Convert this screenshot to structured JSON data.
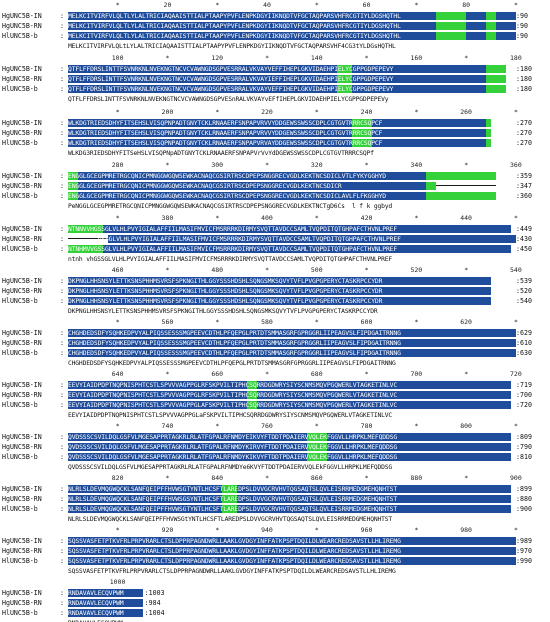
{
  "sequence_names": [
    "HgUNC5B-IN",
    "HgUNC5B-RN",
    "HlUNC5B-b"
  ],
  "blocks": [
    {
      "ruler": [
        "*",
        "20",
        "*",
        "40",
        "*",
        "60",
        "*",
        "80",
        "*"
      ],
      "rows": [
        {
          "seq": "MELKCITVIRFVLQLTLYLALTRICIAQAAISTTIALPTAAPYPVFLENPKDGYIIKNQDTVFGCTAQPARSVHFRCGTIYLDGSHQTHL",
          "count": "90"
        },
        {
          "seq": "MELKCITVIRFVLQLTLYLALTRICIAQAAISTTIALPTAAPYPVFLENPKDGYIIKNQDTVFGCTAQPARSVHFRCGTIYLDGSHQTHL",
          "count": "90"
        },
        {
          "seq": "MELKCITVIRFVLQLTLYLALTRICIAQAAISTTIALPTAAPYPVFLENPKDGYIIKNQDTVFGCTAQPARSVHFRCGTIYLDGSHQTHL",
          "count": "90"
        }
      ],
      "consensus": "MELKCITVIRFVLQLtLYLALTRICIAQAAISTTIALPTAAPYPVFLENPKDGYIIKNQDTVFGCTAQPARSVHF4CG3tYLDGsHQTHL"
    },
    {
      "ruler": [
        "100",
        "*",
        "120",
        "*",
        "140",
        "*",
        "160",
        "*",
        "180"
      ],
      "rows": [
        {
          "seq": "QTFLFFDRSLINTTFSVNRKNLNVEKNGTNCVCVAWNGDSGPVESRRALVKVAYVEFFIHEPLGKVIDAEHPIELYCGPPGDPEPEVY",
          "count": "180"
        },
        {
          "seq": "QTFLFFDRSLINTTFSVNRKNLNVEKNGTNCVCVAWNGDSGPVESRRALVKVAYIEFFIHEPLGKVIDAEHPIELYCGPPGDPEPEVY",
          "count": "180"
        },
        {
          "seq": "QTFLFFDRSLINTTFSVNRKNLNVEKNGTNCVCVAWNGDSGPVESRRALVKVAYVEFFIHEPLGKVIDAEHPIELYCGPPGDPEPEVY",
          "count": "180"
        }
      ],
      "consensus": "QTFLFFDRSLINTTFSVNRKNLNVEKNGTNCVCVAWNGDSGPVESnRALVKVAYvEFfIHEPLGKVIDAEHPIELYCGPPGDPEPEVy"
    },
    {
      "ruler": [
        "*",
        "200",
        "*",
        "220",
        "*",
        "240",
        "*",
        "260",
        "*"
      ],
      "rows": [
        {
          "seq": "WLKDGTRIEDSDHYFITSEHSLVISQPNPADTGNYTCKLRNAAERFSNPAPVRVVYDDGEWSSWSSCDPLCGTGVTRRRCSQPCF",
          "count": "270"
        },
        {
          "seq": "WLKDGTRIEDSDHYFITSEHSLVISQPNPADTGNYTCKLRNAAERFSNPAPVRVVYDDGEWSSWSSCDPLCGTGVTRRRCSQPCF",
          "count": "270"
        },
        {
          "seq": "WLKDGTRIEDSDHYFITSEHSLVISQPNPADTGNYTCKLRNAAERFSNPAPVRVAYDDGEWSSWSSCDPLCGTGVTRRRCSQPCF",
          "count": "270"
        }
      ],
      "consensus": "WLKDG3RIEDSDHYFITSeHSLVISQPNpADTGNYTCKLRNAAERFSNPAPVrVvYdDGEWSSWSSCDPLCGTGVTRRRCSQPf"
    },
    {
      "ruler": [
        "280",
        "*",
        "300",
        "*",
        "320",
        "*",
        "340",
        "*",
        "360"
      ],
      "rows": [
        {
          "seq": "ENGGLGCEGPMRETRGCQNICPMNGGWGQWSEWKACNAQCGSIRTRSCDPEPSNGGRECVGDLKEKTNCSDICLVTLFYKYGGHYD",
          "count": "359"
        },
        {
          "seq": "ENGGLGCEGPMRETRGCQNICPMNGGWGQWSEWKACNAQCGSIRTRSCDPEPSNGGRECVGDLKEKTNCSDICR",
          "count": "347"
        },
        {
          "seq": "ENGGLGCEGPMRETRGCQNICPMNGGWGQWSEWKACNAQCGSIRTRSCDPEPSNGGRECVGDLKEKTNCSDICLAVLFLFKGGHYD",
          "count": "360"
        }
      ],
      "consensus": "PeNGGLGCEGPMRETRGCQNICPMNGGWGQWSEWKACNAQCGSIRTRSCDPEPSNGGRECVGDLKEKTNCTgD6Cs  l f k ggbyd"
    },
    {
      "ruler": [
        "*",
        "380",
        "*",
        "400",
        "*",
        "420",
        "*",
        "440",
        "*"
      ],
      "rows": [
        {
          "seq": "NTNNVVHGSSGLVLHLPVYIGIALAFFIILMASIFMVICFMSRRRKDIRMYSVQTTAVDCCSAMLTVQPDITQTGHPAFCTHVNLPREF",
          "count": "449"
        },
        {
          "seq": "        GSSGLVLHLPVYIGIALAFFIILMASIFMVICFMSRRRKDIRMYSVQTTAVDCCSAMLTVQPDITQTGHPAFCTHVNLPREF",
          "count": "430"
        },
        {
          "seq": "NTNHMVVGSSGLVLHLPVYIGIALAFFIILMASIFMVICFMSRRRKDIRMYSVQTTAVDCCSAMLTVQPDITQTGHPAFCTHVNLPREF",
          "count": "450"
        }
      ],
      "consensus": "ntnh vhGSSGLVLHLPVYIGIALAFFIILMASIFMVICFMSRRRKDIRMYSVQTTAVDCCSAMLTVQPDITQTGHPAFCTHVNLPREF"
    },
    {
      "ruler": [
        "460",
        "*",
        "480",
        "*",
        "500",
        "*",
        "520",
        "*",
        "540"
      ],
      "rows": [
        {
          "seq": "DKPNGLHHSNSYLETTKSNSPHHMSVRSFSPKNGITHLGGYSSSHDSHLSQNGSMKSQVYTVFLPVGPGPERYCTASKRPCCYDR",
          "count": "539"
        },
        {
          "seq": "DKPNGLHHSNSYLETTKSNSPHHMSVRSFSPKNGITHLGGYSSSHDSHLSQNGSMKSQVYTVFLPVGPGPERYCTASKRPCCYDR",
          "count": "520"
        },
        {
          "seq": "DKPNGLHHSNSYLETTKSNSPHHMSVRSFSPKNGITHLGGYSSSHDSHLSQNGSMKSQVYTVFLPVGPGPERYCTASKRPCCYDR",
          "count": "540"
        }
      ],
      "consensus": "DKPNGLHHSNSYLETTKSNSPHHMSVRSFSPKNGITHLGGYSSSHDSHLSQNGSMKSQVYTVFLPVGPGPERYCTASKRPCCYDR"
    },
    {
      "ruler": [
        "*",
        "560",
        "*",
        "580",
        "*",
        "600",
        "*",
        "620",
        "*"
      ],
      "rows": [
        {
          "seq": "CHGHDEDSDFYSQHKEDPVYALPIQSSESSSMGPEEVCDTHLPFQEPGLPRTDTSMMASGRFGPRGGRLIIPEAGVSLFIPDGAITRNNG",
          "count": "629"
        },
        {
          "seq": "CHGHDEDSDFYSQHKEDPVYALPIQSSESSSMGPEEVCDTHLPFQEPGLPRTDTSMMASGRFGPRGGRLIIPEAGVSLFIPDGAITRNNG",
          "count": "610"
        },
        {
          "seq": "CHGHDEDSDFYSQHKEDPVYALPIQSSESSSMGPEEVCDTHLPFQEPGLPRTDTSMMASGRFGPRGGRLIIPEAGVSLFIPDGAITRNNG",
          "count": "630"
        }
      ],
      "consensus": "CHGHDEDSDFYSQHKEDPVYALPIQSSESSSMGPEEVCDTHLPFQEPGLPRTDTSMMASGRFGPRGGRLIIPEAGVSLFIPDGAITRNNG"
    },
    {
      "ruler": [
        "640",
        "*",
        "660",
        "*",
        "680",
        "*",
        "700",
        "*",
        "720"
      ],
      "rows": [
        {
          "seq": "EEVYIAIDPDPTNQPNISPHTCSTLSPVVVAGPPGLRFSKPVILTIPHCSQRRDGDWRYSIYSCNMSMQVPGQWERLVTAGKETINLVC",
          "count": "719"
        },
        {
          "seq": "EEVYIAIDPDPTNQPNISPHTCSTLSPVVVAGPPGLRFSKPVILTIPHCSQRRDGDWRYSIYSCNMSMQVPGQWERLVTAGKETINLVC",
          "count": "700"
        },
        {
          "seq": "EEVYIAIDPDPTNQPNISPHTCSTLSPVVVAGPPGLAFSKPVILTIPHCSQRRDGDWRYSIYSCNMSMQVPGQWERLVTAGKETINLVC",
          "count": "720"
        }
      ],
      "consensus": "EEVYIAIDPDPTNQPNISPHTCSTLSPVVVAGPPGLaFSKPVILTIPHCSQRRDGDWRYSIYSCNMSMQVPGQWERLVTAGKETINLVC"
    },
    {
      "ruler": [
        "*",
        "740",
        "*",
        "760",
        "*",
        "780",
        "*",
        "800",
        "*"
      ],
      "rows": [
        {
          "seq": "QVDSSSCSVILDQLGSFVLMGESAPPRTAGKRLRLATFGPALRFNMDYEIKVYFTDDTPDAIERVVQLEKFGGVLLHRPKLMEFQDDSG",
          "count": "809"
        },
        {
          "seq": "QVDSSSCSVILDQLGSFVLMGESAPPRTAGKRLRLATFGPALRFNMDYKIRVYFTDDTPDAIERVVQLEKFGGVLLHRPKLMEFQDDSG",
          "count": "790"
        },
        {
          "seq": "QVDSSSCSVILDQLGSFVLMGESAPPRTAGKRLRLATFGPALRFNMDYKIKVYFTDDTPDAIERVVQLEKFGGVLLHRPKLMEFQDDSG",
          "count": "810"
        }
      ],
      "consensus": "QVDSSSCSVILDQLGSFVLMGESAPPRTAGKRLRLATFGPALRFNMDYe6KVYFTDDTPDAIERVVQLEkFGGVLLHRPKLMEFQDDSG"
    },
    {
      "ruler": [
        "820",
        "*",
        "840",
        "*",
        "860",
        "*",
        "880",
        "*",
        "900"
      ],
      "rows": [
        {
          "seq": "NLRLSLDEVMQGWQCKLSANFQEIPFFHVWSGTYNTLHCSFTLAREDPSLDVVGCRVHVTQGSAQTSLQVLEISRRMEDGMEHQNHTST",
          "count": "899"
        },
        {
          "seq": "NLRLSLDEVMQGWQCKLSANFQEIPFFHVWSGSYNTLHCSFTLAREDPSLDVVGCRVHVTQGSAQTSLQVLEISRRMEDGMEHQNHTST",
          "count": "880"
        },
        {
          "seq": "NLRLSLDEVMQGWQCKLSANFQEIPFFHVWSGTYNTLHCSFTLAREDPSLDVVGCRVHVTQGSAQTSLQVLEISRRMEDGMEHQNHTST",
          "count": "900"
        }
      ],
      "consensus": "NLRLSLDEVMQGWQCKLSANFQEIPFFHVWSGtYNTLHCSFTLAREDPSLDVVGCRVHVTQGSAQTSLQVLEISRRMEDGMEHQNHTST"
    },
    {
      "ruler": [
        "*",
        "920",
        "*",
        "940",
        "*",
        "960",
        "*",
        "980",
        "*"
      ],
      "rows": [
        {
          "seq": "SQSSVASFETPTKVFRLPRPVRARLCTSLDPPRPAGNDWRLLAAKLGVDGYINFFATKPSPTDQILDLWEARCREDSAVSTLLHLIREMG",
          "count": "989"
        },
        {
          "seq": "SQSSVASFETPTKVFRLPRPVRARLCTSLDPPRPAGNDWRLLAAKLGVDGYINFFATKPSPTDQILDLWEARCREDSAVSTLLHLIREMG",
          "count": "970"
        },
        {
          "seq": "SQSSVASFETPTKVFRLPRPVRARLCTSLDPPRPAGNDWRLLAAKLGVDGYINFFATKPSPTDQILDLWEARCREDSAVSTLLHLIREMG",
          "count": "990"
        }
      ],
      "consensus": "SQSSVASFETPTKVFRLPRPVRARLCTSLDPPRPAGNDWRLLAAKLGVDGYINFFATKPSPTDQILDLWEARCREDSAVSTLLHLIREMG"
    },
    {
      "ruler": [
        "1000"
      ],
      "rows": [
        {
          "seq": "RNDAVAVLECQVPWM",
          "count": "1003"
        },
        {
          "seq": "RNDAVAVLECQVPWM",
          "count": "984"
        },
        {
          "seq": "RNDAVAVLECQVPWM",
          "count": "1004"
        }
      ],
      "consensus": "RNDAVAVLECQVPWM"
    }
  ],
  "colors": {
    "identical": "#1f4d9c",
    "variable": "#35d13b",
    "text_on_identical": "#ffffff"
  }
}
